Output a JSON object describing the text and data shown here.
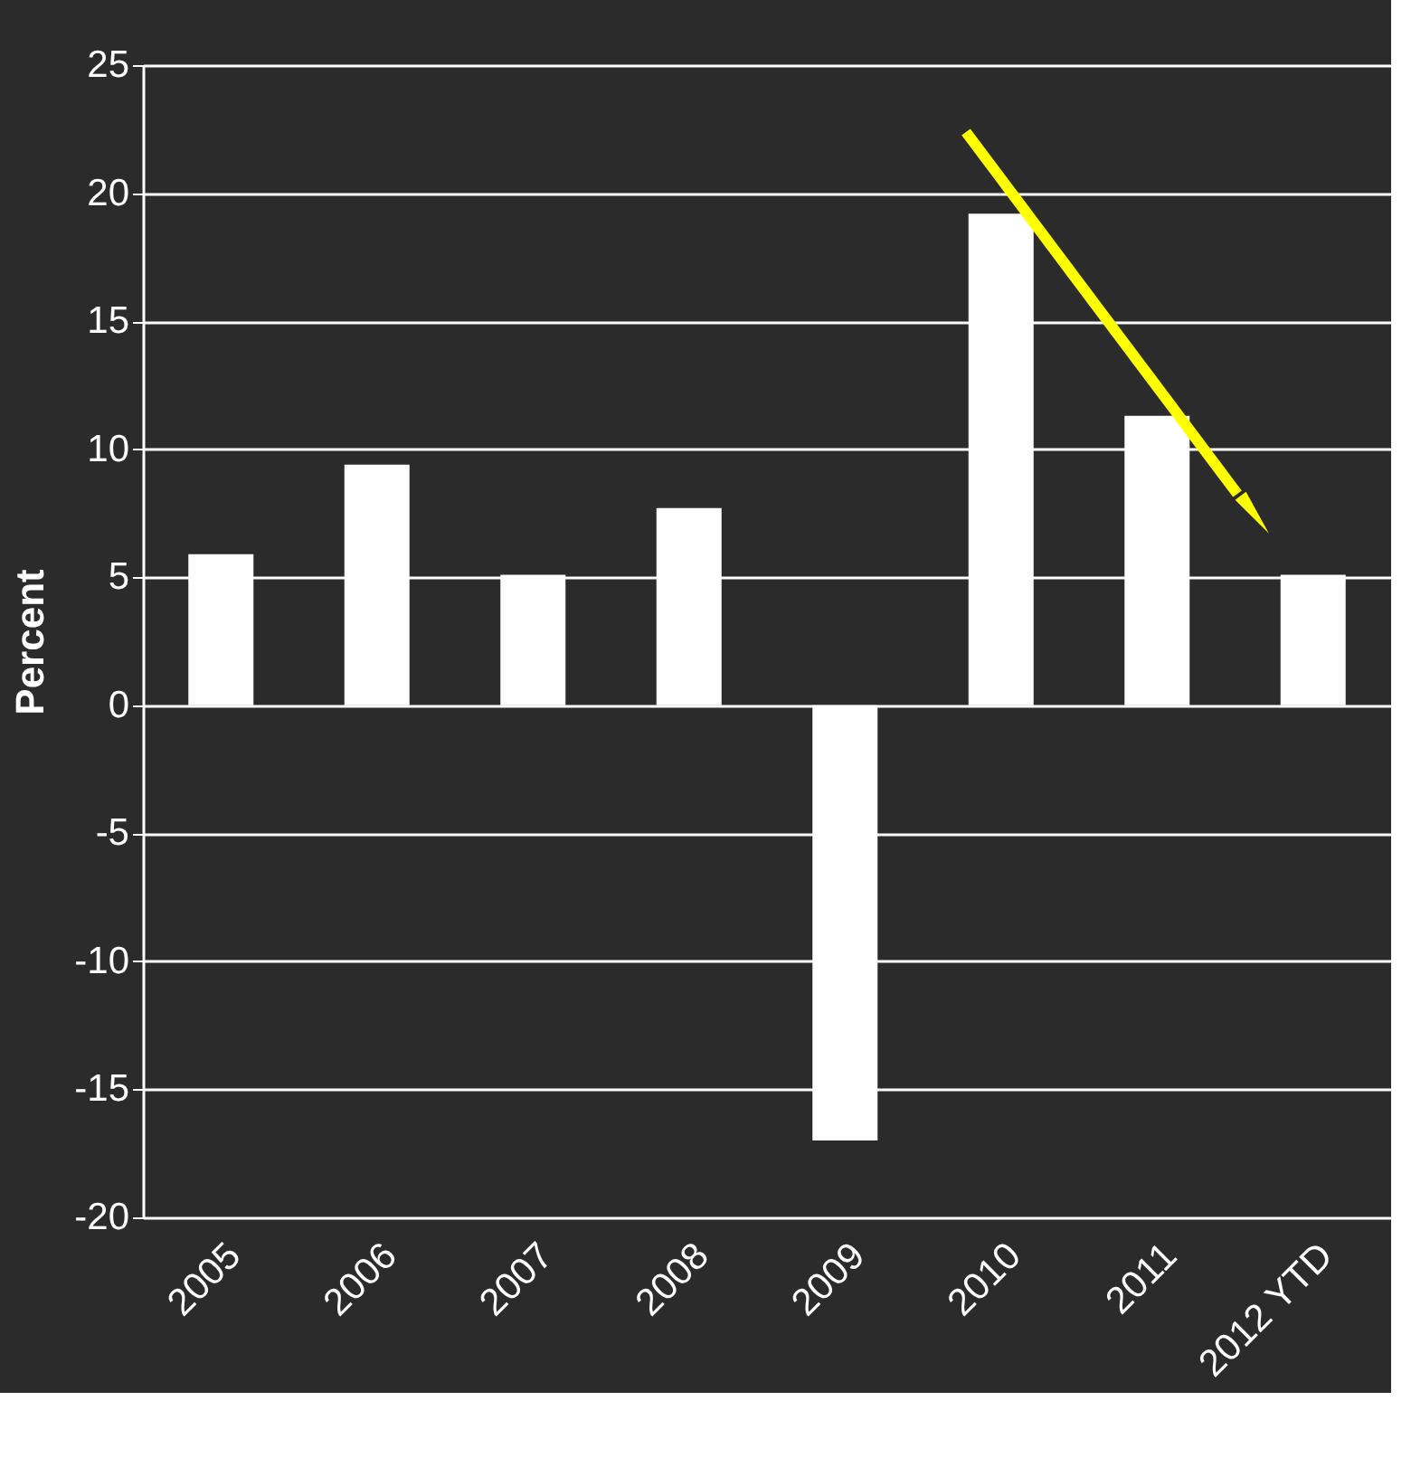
{
  "chart_data": {
    "type": "bar",
    "ylabel": "Percent",
    "categories": [
      "2005",
      "2006",
      "2007",
      "2008",
      "2009",
      "2010",
      "2011",
      "2012 YTD"
    ],
    "values": [
      5.9,
      9.4,
      5.1,
      7.7,
      -17.0,
      19.2,
      11.3,
      5.1
    ],
    "color": "#ffffff",
    "ylim": [
      -20,
      25
    ],
    "yticks": [
      -20,
      -15,
      -10,
      -5,
      0,
      5,
      10,
      15,
      20,
      25
    ],
    "grid": "y"
  }
}
